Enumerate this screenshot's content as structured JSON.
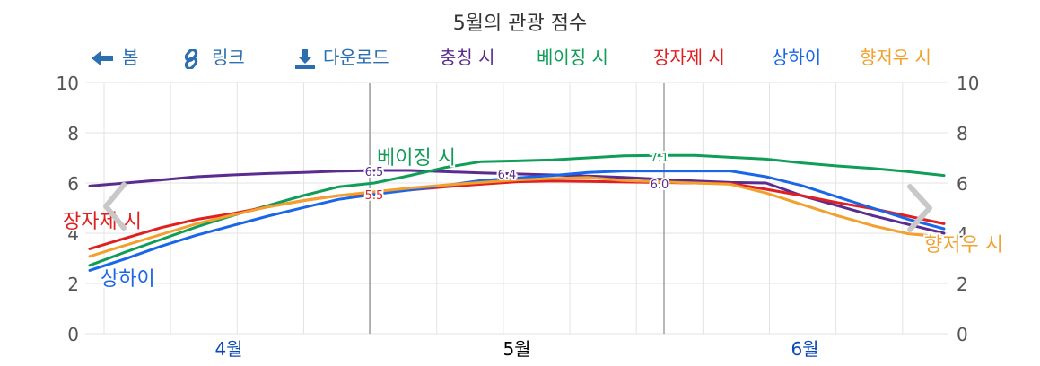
{
  "chart_data": {
    "type": "line",
    "title": "5월의 관광 점수",
    "xlabel": "",
    "ylabel": "",
    "ylim": [
      0,
      10
    ],
    "yticks": [
      "0",
      "2",
      "4",
      "6",
      "8",
      "10"
    ],
    "month_labels": [
      "4월",
      "5월",
      "6월"
    ],
    "series": [
      {
        "name": "충칭 시",
        "color": "#5b2c8f",
        "values": [
          5.88,
          6.0,
          6.12,
          6.25,
          6.32,
          6.38,
          6.42,
          6.47,
          6.5,
          6.5,
          6.45,
          6.4,
          6.36,
          6.32,
          6.28,
          6.22,
          6.15,
          6.08,
          6.02,
          6.0,
          5.5,
          5.1,
          4.7,
          4.35,
          4.0
        ]
      },
      {
        "name": "베이징 시",
        "color": "#0f9d58",
        "values": [
          2.72,
          3.25,
          3.75,
          4.25,
          4.7,
          5.1,
          5.5,
          5.85,
          6.0,
          6.3,
          6.62,
          6.85,
          6.88,
          6.92,
          7.0,
          7.08,
          7.1,
          7.1,
          7.02,
          6.95,
          6.8,
          6.68,
          6.58,
          6.45,
          6.3
        ]
      },
      {
        "name": "장자제 시",
        "color": "#e02020",
        "values": [
          3.38,
          3.8,
          4.22,
          4.55,
          4.78,
          5.05,
          5.3,
          5.5,
          5.6,
          5.72,
          5.85,
          5.95,
          6.05,
          6.08,
          6.06,
          6.04,
          6.02,
          6.0,
          5.98,
          5.75,
          5.5,
          5.22,
          4.98,
          4.68,
          4.38
        ]
      },
      {
        "name": "상하이",
        "color": "#1a66e8",
        "values": [
          2.52,
          2.98,
          3.48,
          3.92,
          4.3,
          4.68,
          5.02,
          5.35,
          5.55,
          5.72,
          5.9,
          6.1,
          6.2,
          6.3,
          6.42,
          6.48,
          6.48,
          6.48,
          6.48,
          6.25,
          5.9,
          5.45,
          5.0,
          4.55,
          4.18
        ]
      },
      {
        "name": "향저우 시",
        "color": "#f2a02e",
        "values": [
          3.08,
          3.52,
          3.95,
          4.38,
          4.72,
          5.05,
          5.3,
          5.5,
          5.65,
          5.8,
          5.92,
          6.02,
          6.12,
          6.18,
          6.22,
          6.1,
          6.05,
          6.0,
          5.95,
          5.6,
          5.15,
          4.7,
          4.3,
          3.98,
          3.85
        ]
      }
    ],
    "data_labels": [
      "6.5",
      "6.4",
      "5.5",
      "7.1",
      "6.0"
    ]
  },
  "toolbar": {
    "spring": "봄",
    "link": "링크",
    "download": "다운로드"
  },
  "icons": {
    "spring": "arrow-left-icon",
    "link": "link-icon",
    "download": "download-icon",
    "prev": "chevron-left-icon",
    "next": "chevron-right-icon"
  },
  "colors": {
    "toolbar": "#2c6fb0",
    "month_active": "#000000",
    "month_link": "#0b49b8",
    "axis_text": "#555555"
  }
}
